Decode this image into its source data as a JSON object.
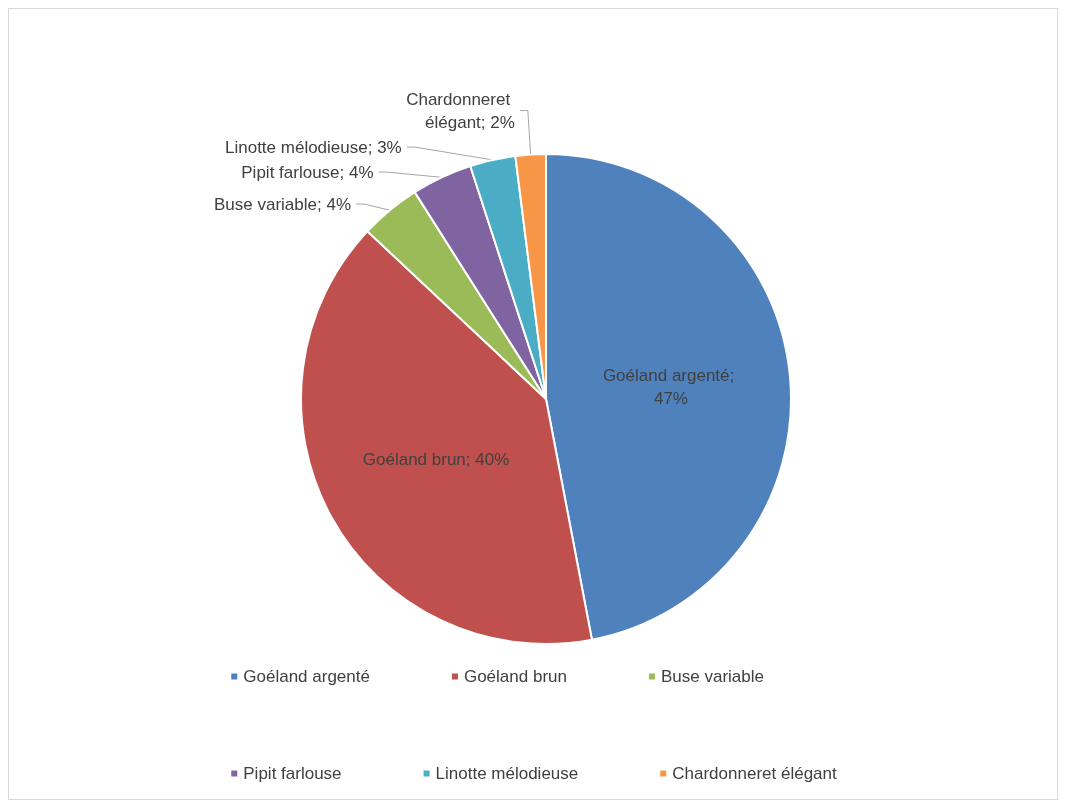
{
  "chart_data": {
    "type": "pie",
    "categories": [
      "Goéland argenté",
      "Goéland brun",
      "Buse variable",
      "Pipit farlouse",
      "Linotte mélodieuse",
      "Chardonneret élégant"
    ],
    "values": [
      47,
      40,
      4,
      4,
      3,
      2
    ],
    "value_labels": [
      "Goéland argenté; 47%",
      "Goéland brun; 40%",
      "Buse variable; 4%",
      "Pipit farlouse; 4%",
      "Linotte mélodieuse; 3%",
      "Chardonneret élégant; 2%"
    ],
    "colors": [
      "#4f81bd",
      "#c0504d",
      "#9bbb59",
      "#8064a2",
      "#4bacc6",
      "#f79646"
    ],
    "legend": "bottom"
  }
}
